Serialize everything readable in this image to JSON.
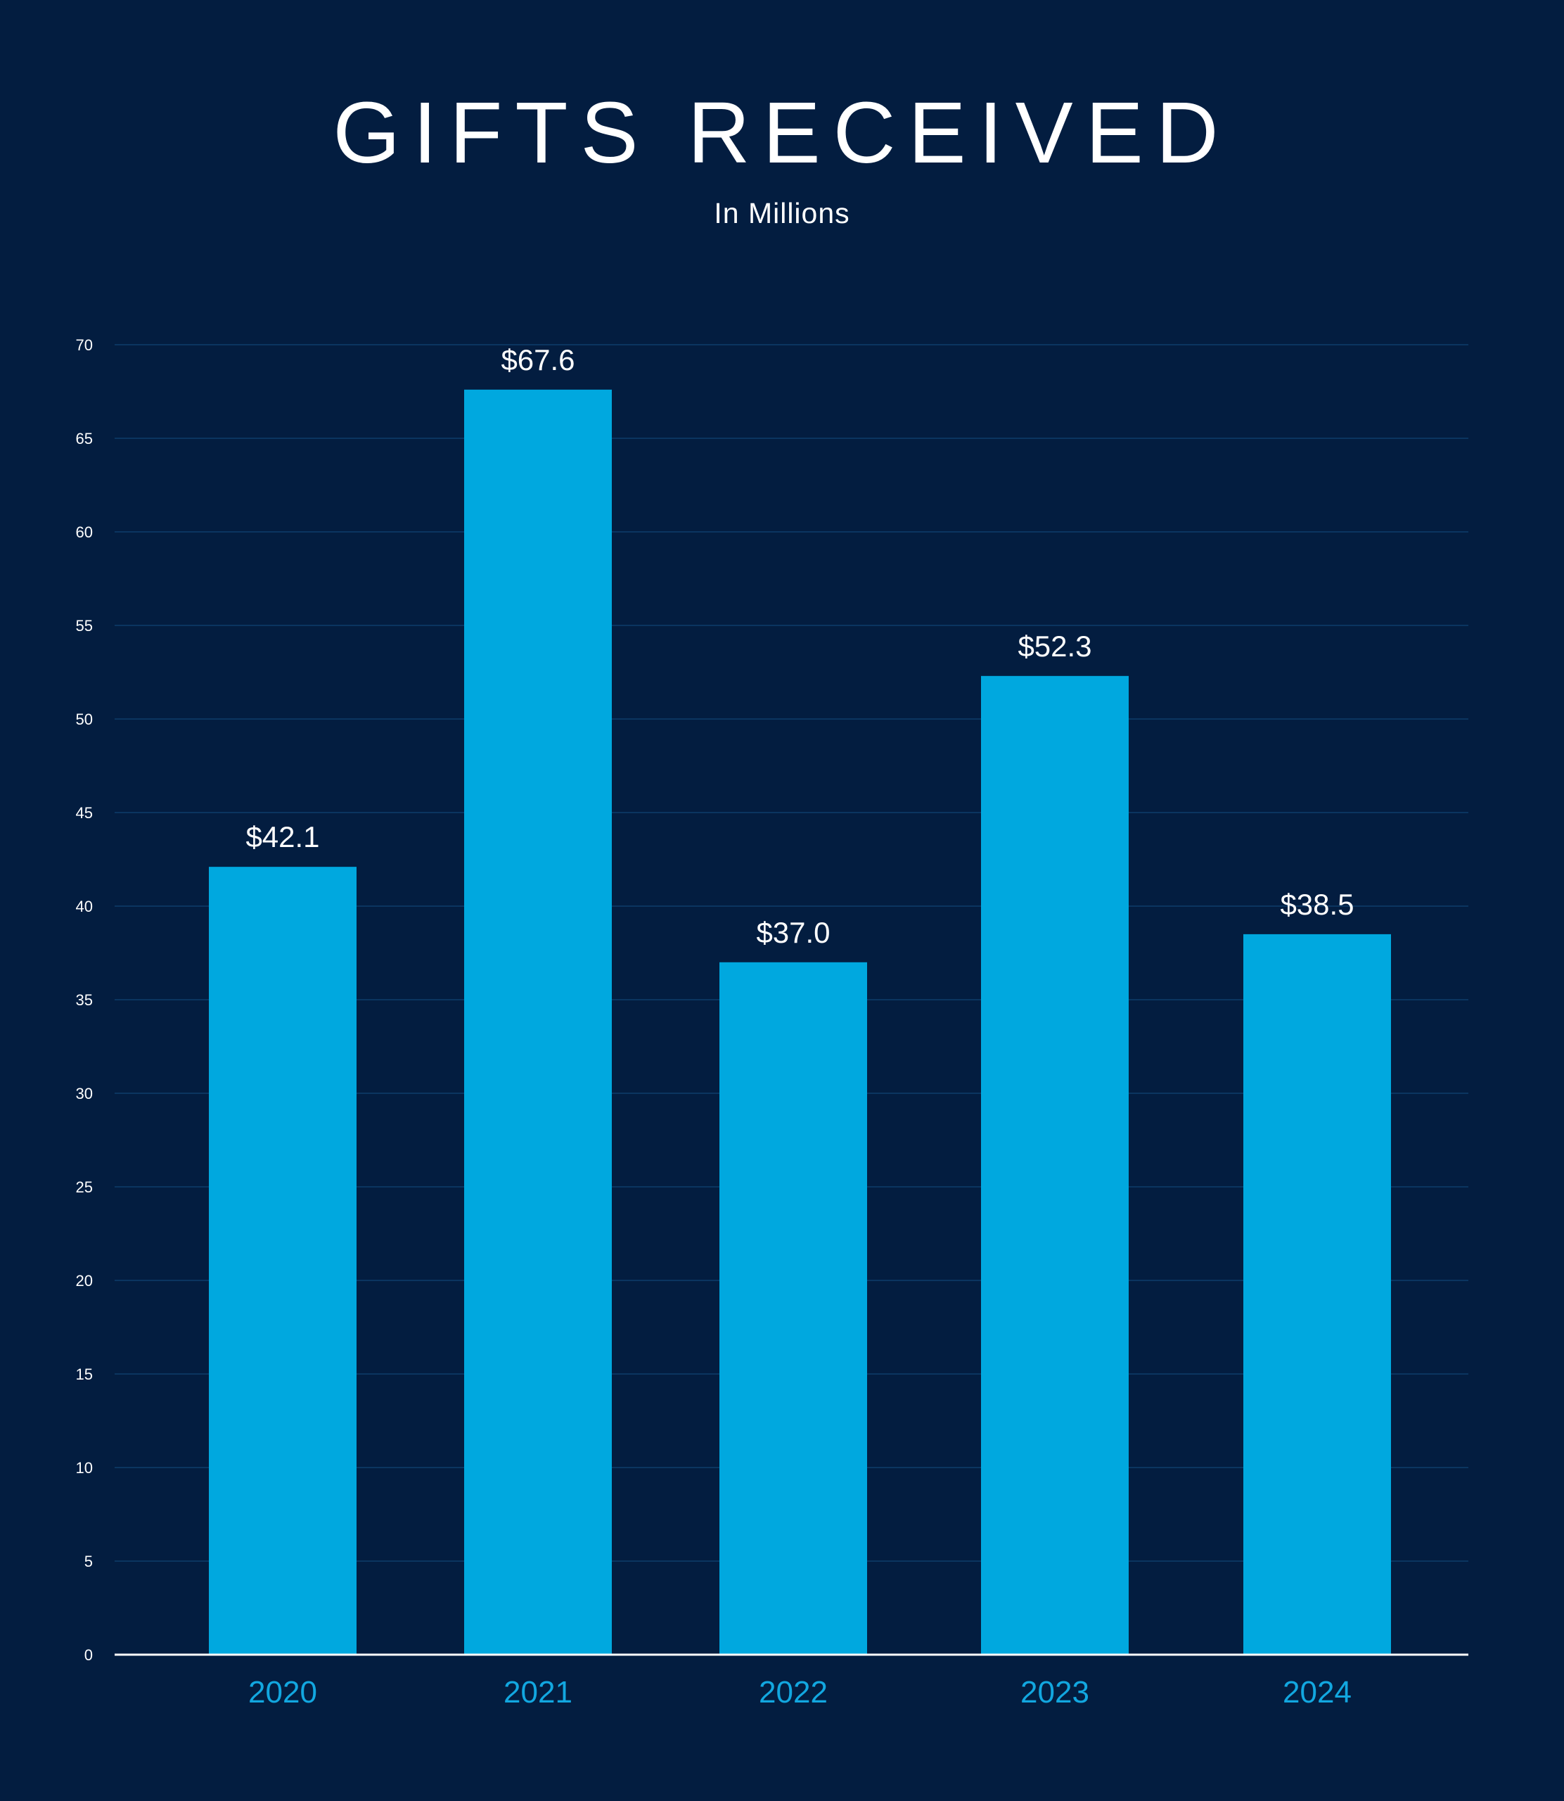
{
  "chart_data": {
    "type": "bar",
    "title": "GIFTS RECEIVED",
    "subtitle": "In Millions",
    "xlabel": "",
    "ylabel": "",
    "categories": [
      "2020",
      "2021",
      "2022",
      "2023",
      "2024"
    ],
    "values": [
      42.1,
      67.6,
      37.0,
      52.3,
      38.5
    ],
    "data_labels": [
      "$42.1",
      "$67.6",
      "$37.0",
      "$52.3",
      "$38.5"
    ],
    "ylim": [
      0,
      70
    ],
    "y_ticks": [
      "0",
      "5",
      "10",
      "15",
      "20",
      "25",
      "30",
      "35",
      "40",
      "45",
      "50",
      "55",
      "60",
      "65",
      "70"
    ],
    "grid": true,
    "legend": "none"
  },
  "colors": {
    "background": "#031d40",
    "bar": "#00a8df",
    "gridline": "#0b3560",
    "axis": "#ffffff",
    "category_label": "#12a7e0",
    "text": "#ffffff"
  }
}
